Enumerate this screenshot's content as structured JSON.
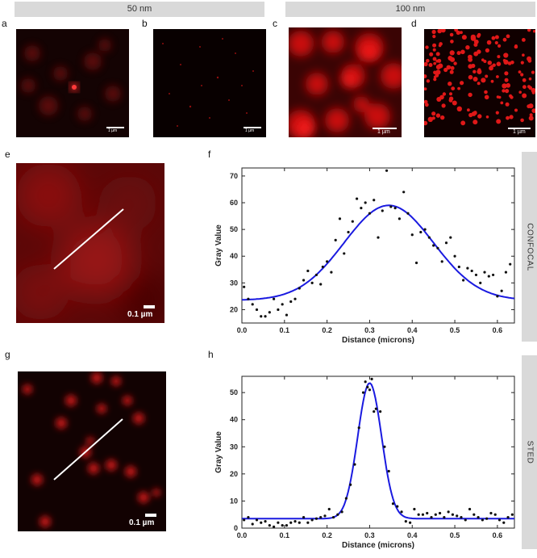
{
  "header": {
    "left": "50 nm",
    "right": "100 nm"
  },
  "panel_labels": [
    "a",
    "b",
    "c",
    "d",
    "e",
    "f",
    "g",
    "h"
  ],
  "scalebars": {
    "small": "1 µm",
    "large": "0.1 µm"
  },
  "side_labels": {
    "top": "CONFOCAL",
    "bottom": "STED"
  },
  "colors": {
    "fit_line": "#1a1ae0",
    "points": "#111111",
    "fluorescence": "#e01010"
  },
  "chart_data": [
    {
      "type": "scatter",
      "panel": "f",
      "xlabel": "Distance (microns)",
      "ylabel": "Gray Value",
      "xlim": [
        0,
        0.64
      ],
      "ylim": [
        15,
        73
      ],
      "xticks": [
        0.0,
        0.1,
        0.2,
        0.3,
        0.4,
        0.5,
        0.6
      ],
      "xtick_labels": [
        "0.0",
        "0.1",
        "0.2",
        "0.3",
        "0.4",
        "0.5",
        "0.6"
      ],
      "yticks": [
        20,
        30,
        40,
        50,
        60,
        70
      ],
      "ytick_labels": [
        "20",
        "30",
        "40",
        "50",
        "60",
        "70"
      ],
      "fit": {
        "baseline": 23.5,
        "amplitude": 35.5,
        "center": 0.345,
        "sigma": 0.105
      },
      "points": [
        [
          0.005,
          28.5
        ],
        [
          0.015,
          24
        ],
        [
          0.025,
          22
        ],
        [
          0.035,
          20
        ],
        [
          0.045,
          17.5
        ],
        [
          0.055,
          17.5
        ],
        [
          0.065,
          19
        ],
        [
          0.075,
          24
        ],
        [
          0.085,
          20
        ],
        [
          0.095,
          22
        ],
        [
          0.105,
          18
        ],
        [
          0.115,
          23
        ],
        [
          0.125,
          24
        ],
        [
          0.135,
          28
        ],
        [
          0.145,
          31
        ],
        [
          0.155,
          34.5
        ],
        [
          0.165,
          30
        ],
        [
          0.175,
          33
        ],
        [
          0.185,
          29.5
        ],
        [
          0.19,
          36
        ],
        [
          0.2,
          38
        ],
        [
          0.21,
          34
        ],
        [
          0.22,
          46
        ],
        [
          0.23,
          54
        ],
        [
          0.24,
          41
        ],
        [
          0.25,
          49
        ],
        [
          0.26,
          53
        ],
        [
          0.27,
          61.5
        ],
        [
          0.28,
          58
        ],
        [
          0.29,
          60
        ],
        [
          0.3,
          56
        ],
        [
          0.31,
          61
        ],
        [
          0.32,
          47
        ],
        [
          0.33,
          57
        ],
        [
          0.34,
          72
        ],
        [
          0.35,
          58.5
        ],
        [
          0.36,
          58
        ],
        [
          0.37,
          54
        ],
        [
          0.38,
          64
        ],
        [
          0.39,
          56
        ],
        [
          0.4,
          48
        ],
        [
          0.41,
          37.5
        ],
        [
          0.42,
          49
        ],
        [
          0.43,
          50
        ],
        [
          0.44,
          47
        ],
        [
          0.45,
          44
        ],
        [
          0.46,
          43
        ],
        [
          0.47,
          38
        ],
        [
          0.48,
          45
        ],
        [
          0.49,
          47
        ],
        [
          0.5,
          40
        ],
        [
          0.51,
          36
        ],
        [
          0.52,
          31
        ],
        [
          0.53,
          35.5
        ],
        [
          0.54,
          34.5
        ],
        [
          0.55,
          33
        ],
        [
          0.56,
          30
        ],
        [
          0.57,
          34
        ],
        [
          0.58,
          32.5
        ],
        [
          0.59,
          33
        ],
        [
          0.6,
          25
        ],
        [
          0.61,
          27
        ],
        [
          0.62,
          34
        ],
        [
          0.63,
          37
        ]
      ]
    },
    {
      "type": "scatter",
      "panel": "h",
      "xlabel": "Distance (microns)",
      "ylabel": "Gray Value",
      "xlim": [
        0,
        0.64
      ],
      "ylim": [
        0,
        56
      ],
      "xticks": [
        0.0,
        0.1,
        0.2,
        0.3,
        0.4,
        0.5,
        0.6
      ],
      "xtick_labels": [
        "0.0",
        "0.1",
        "0.2",
        "0.3",
        "0.4",
        "0.5",
        "0.6"
      ],
      "yticks": [
        0,
        10,
        20,
        30,
        40,
        50
      ],
      "ytick_labels": [
        "0",
        "10",
        "20",
        "30",
        "40",
        "50"
      ],
      "fit": {
        "baseline": 3.5,
        "amplitude": 50,
        "center": 0.3,
        "sigma": 0.028
      },
      "points": [
        [
          0.005,
          3
        ],
        [
          0.015,
          4
        ],
        [
          0.025,
          1.5
        ],
        [
          0.035,
          3
        ],
        [
          0.045,
          2
        ],
        [
          0.055,
          2.5
        ],
        [
          0.065,
          1
        ],
        [
          0.075,
          0.5
        ],
        [
          0.085,
          2
        ],
        [
          0.095,
          1
        ],
        [
          0.105,
          1
        ],
        [
          0.115,
          2
        ],
        [
          0.125,
          2.5
        ],
        [
          0.135,
          2
        ],
        [
          0.145,
          4
        ],
        [
          0.155,
          2
        ],
        [
          0.165,
          3
        ],
        [
          0.175,
          3.5
        ],
        [
          0.185,
          4
        ],
        [
          0.195,
          4.5
        ],
        [
          0.205,
          7
        ],
        [
          0.215,
          4
        ],
        [
          0.225,
          5
        ],
        [
          0.235,
          6
        ],
        [
          0.245,
          11
        ],
        [
          0.255,
          16
        ],
        [
          0.265,
          23.5
        ],
        [
          0.275,
          37
        ],
        [
          0.285,
          50
        ],
        [
          0.29,
          54
        ],
        [
          0.295,
          52
        ],
        [
          0.3,
          51
        ],
        [
          0.305,
          55
        ],
        [
          0.31,
          43
        ],
        [
          0.315,
          44
        ],
        [
          0.325,
          43
        ],
        [
          0.335,
          30
        ],
        [
          0.345,
          21
        ],
        [
          0.355,
          9
        ],
        [
          0.365,
          8
        ],
        [
          0.375,
          6
        ],
        [
          0.385,
          2.5
        ],
        [
          0.395,
          2
        ],
        [
          0.405,
          7
        ],
        [
          0.415,
          5
        ],
        [
          0.425,
          5
        ],
        [
          0.435,
          5.5
        ],
        [
          0.445,
          4
        ],
        [
          0.455,
          5
        ],
        [
          0.465,
          5.5
        ],
        [
          0.475,
          4
        ],
        [
          0.485,
          6
        ],
        [
          0.495,
          5
        ],
        [
          0.505,
          4.5
        ],
        [
          0.515,
          4
        ],
        [
          0.525,
          3
        ],
        [
          0.535,
          7
        ],
        [
          0.545,
          5
        ],
        [
          0.555,
          4
        ],
        [
          0.565,
          3
        ],
        [
          0.575,
          3.5
        ],
        [
          0.585,
          5.5
        ],
        [
          0.595,
          5
        ],
        [
          0.605,
          3
        ],
        [
          0.615,
          2
        ],
        [
          0.625,
          4
        ],
        [
          0.635,
          5
        ]
      ]
    }
  ]
}
